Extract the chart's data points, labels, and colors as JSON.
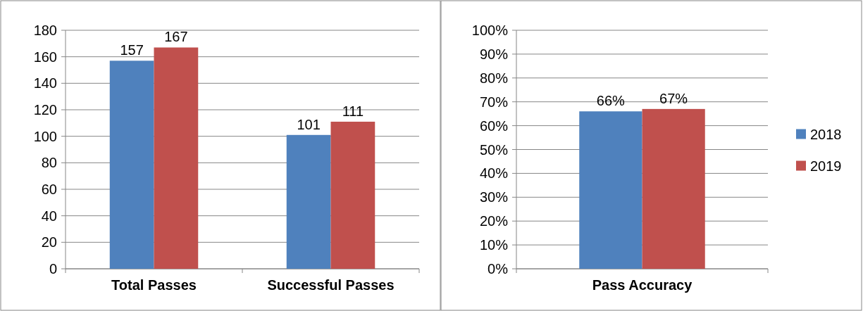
{
  "chart_data": [
    {
      "type": "bar",
      "categories": [
        "Total Passes",
        "Successful Passes"
      ],
      "series": [
        {
          "color": "#4f81bd",
          "values": [
            157,
            101
          ]
        },
        {
          "color": "#c0504d",
          "values": [
            167,
            111
          ]
        }
      ],
      "ylim": [
        0,
        180
      ],
      "yticks": [
        0,
        20,
        40,
        60,
        80,
        100,
        120,
        140,
        160,
        180
      ],
      "grid": "y",
      "data_labels": true,
      "legend": false
    },
    {
      "type": "bar",
      "categories": [
        "Pass Accuracy"
      ],
      "series": [
        {
          "name": "2018",
          "color": "#4f81bd",
          "values": [
            66
          ],
          "value_labels": [
            "66%"
          ]
        },
        {
          "name": "2019",
          "color": "#c0504d",
          "values": [
            67
          ],
          "value_labels": [
            "67%"
          ]
        }
      ],
      "ylim": [
        0,
        100
      ],
      "yticks": [
        {
          "value": 0,
          "label": "0%"
        },
        {
          "value": 10,
          "label": "10%"
        },
        {
          "value": 20,
          "label": "20%"
        },
        {
          "value": 30,
          "label": "30%"
        },
        {
          "value": 40,
          "label": "40%"
        },
        {
          "value": 50,
          "label": "50%"
        },
        {
          "value": 60,
          "label": "60%"
        },
        {
          "value": 70,
          "label": "70%"
        },
        {
          "value": 80,
          "label": "80%"
        },
        {
          "value": 90,
          "label": "90%"
        },
        {
          "value": 100,
          "label": "100%"
        }
      ],
      "grid": "y",
      "legend": "right"
    }
  ]
}
